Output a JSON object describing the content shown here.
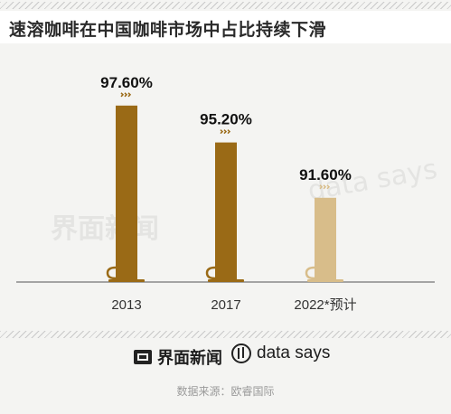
{
  "header": {
    "title": "速溶咖啡在中国咖啡市场中占比持续下滑"
  },
  "chart_data": {
    "type": "bar",
    "categories": [
      "2013",
      "2017",
      "2022*预计"
    ],
    "values": [
      97.6,
      95.2,
      91.6
    ],
    "data_labels": [
      "97.60%",
      "95.20%",
      "91.60%"
    ],
    "colors": [
      "#9a6a16",
      "#9a6a16",
      "#d8bd8a"
    ],
    "ylim": [
      0,
      100
    ],
    "title": "",
    "xlabel": "",
    "ylabel": ""
  },
  "watermarks": {
    "brand": "界面新闻",
    "data": "data says"
  },
  "footer": {
    "brand_1": "界面新闻",
    "brand_2": "data says",
    "source": "数据来源：欧睿国际"
  }
}
